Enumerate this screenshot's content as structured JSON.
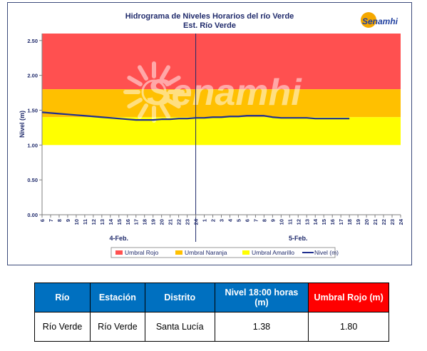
{
  "chart": {
    "title_line1": "Hidrograma de Niveles Horarios del río Verde",
    "title_line2": "Est. Río Verde",
    "logo_text": "Senamhi",
    "watermark_text": "Senamhi"
  },
  "chart_data": {
    "type": "line",
    "title": "Hidrograma de Niveles Horarios del río Verde",
    "subtitle": "Est. Río Verde",
    "ylabel": "Nivel (m)",
    "xlabel": "",
    "ylim": [
      0,
      2.6
    ],
    "yticks": [
      "0.00",
      "0.50",
      "1.00",
      "1.50",
      "2.00",
      "2.50"
    ],
    "xticks": [
      "6",
      "7",
      "8",
      "9",
      "10",
      "11",
      "12",
      "13",
      "14",
      "15",
      "16",
      "17",
      "18",
      "19",
      "20",
      "21",
      "22",
      "23",
      "24",
      "1",
      "2",
      "3",
      "4",
      "5",
      "6",
      "7",
      "8",
      "9",
      "10",
      "11",
      "12",
      "13",
      "14",
      "15",
      "16",
      "17",
      "18",
      "19",
      "20",
      "21",
      "22",
      "23",
      "24"
    ],
    "day_labels": [
      "4-Feb.",
      "5-Feb."
    ],
    "bands": [
      {
        "name": "Umbral Rojo",
        "from": 1.8,
        "to": 2.6,
        "color": "#ff5050"
      },
      {
        "name": "Umbral Naranja",
        "from": 1.4,
        "to": 1.8,
        "color": "#ffc000"
      },
      {
        "name": "Umbral Amarillo",
        "from": 1.0,
        "to": 1.4,
        "color": "#ffff00"
      }
    ],
    "series": [
      {
        "name": "Nivel (m)",
        "color": "#1f2f8f",
        "values": [
          1.47,
          1.46,
          1.45,
          1.44,
          1.43,
          1.42,
          1.41,
          1.4,
          1.39,
          1.38,
          1.37,
          1.36,
          1.36,
          1.36,
          1.37,
          1.37,
          1.38,
          1.38,
          1.39,
          1.39,
          1.4,
          1.4,
          1.41,
          1.41,
          1.42,
          1.42,
          1.42,
          1.4,
          1.39,
          1.39,
          1.39,
          1.39,
          1.38,
          1.38,
          1.38,
          1.38,
          1.38
        ]
      }
    ],
    "grid": false,
    "legend": "bottom"
  },
  "legend": [
    "Umbral Rojo",
    "Umbral Naranja",
    "Umbral Amarillo",
    "Nivel (m)"
  ],
  "table": {
    "headers": [
      "Río",
      "Estación",
      "Distrito",
      "Nivel 18:00 horas (m)",
      "Umbral Rojo (m)"
    ],
    "header_colors": [
      "#0070c0",
      "#0070c0",
      "#0070c0",
      "#0070c0",
      "#ff0000"
    ],
    "row": [
      "Río Verde",
      "Río Verde",
      "Santa Lucía",
      "1.38",
      "1.80"
    ]
  }
}
